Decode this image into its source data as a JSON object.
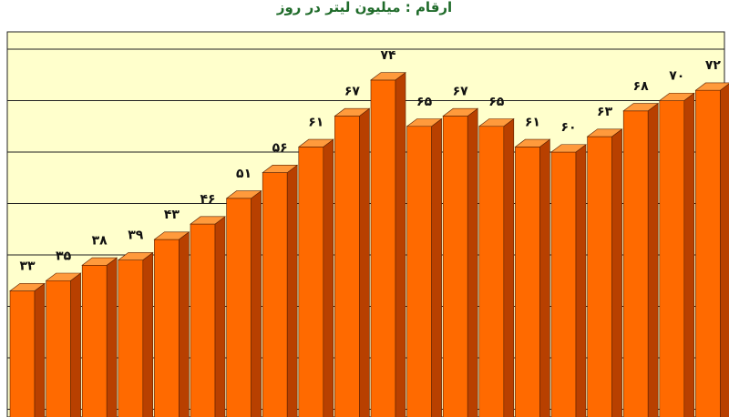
{
  "chart_data": {
    "type": "bar",
    "title": "ارقام : میلیون لیتر در روز",
    "title_color": "#1f6b2a",
    "plot_background": "#ffffcc",
    "gridline_color": "#222222",
    "bar_front_color": "#ff6a00",
    "bar_side_color": "#b84000",
    "bar_top_color": "#ff9a3c",
    "ylim": [
      0,
      80
    ],
    "grid": true,
    "values": [
      33,
      35,
      38,
      39,
      43,
      46,
      51,
      56,
      61,
      67,
      74,
      65,
      67,
      65,
      61,
      60,
      63,
      68,
      70,
      72
    ],
    "data_labels": [
      "۳۳",
      "۳۵",
      "۳۸",
      "۳۹",
      "۴۳",
      "۴۶",
      "۵۱",
      "۵۶",
      "۶۱",
      "۶۷",
      "۷۴",
      "۶۵",
      "۶۷",
      "۶۵",
      "۶۱",
      "۶۰",
      "۶۳",
      "۶۸",
      "۷۰",
      "۷۲"
    ]
  }
}
